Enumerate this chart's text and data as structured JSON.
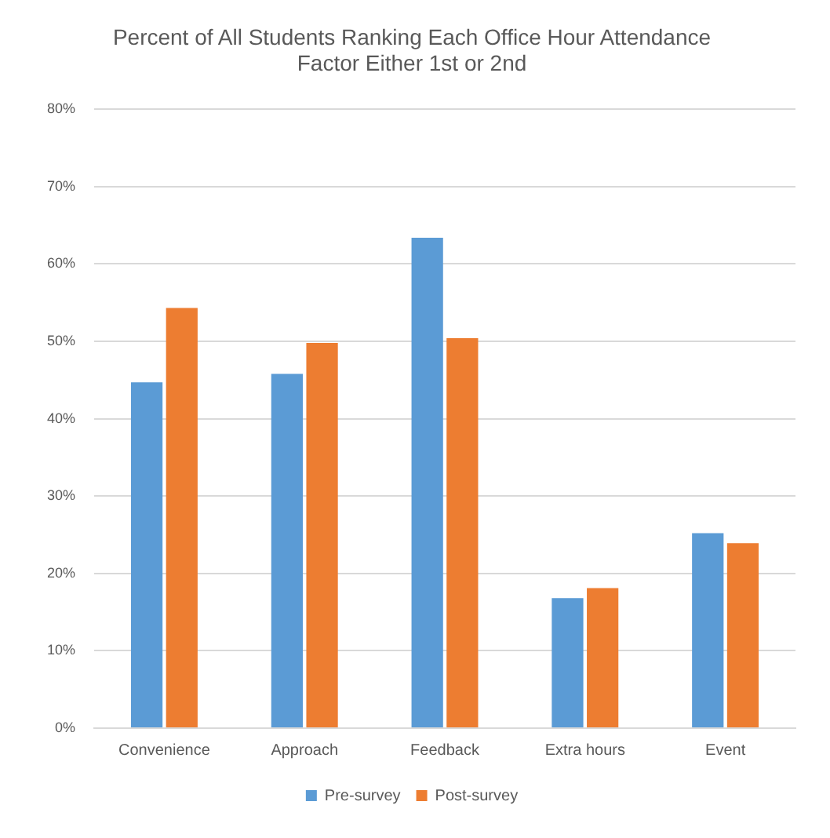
{
  "chart_data": {
    "type": "bar",
    "title": "Percent of All Students Ranking Each Office Hour Attendance Factor Either 1st or 2nd",
    "categories": [
      "Convenience",
      "Approach",
      "Feedback",
      "Extra hours",
      "Event"
    ],
    "series": [
      {
        "name": "Pre-survey",
        "color": "#5b9bd5",
        "values": [
          44.7,
          45.8,
          63.4,
          16.8,
          25.2
        ]
      },
      {
        "name": "Post-survey",
        "color": "#ed7d31",
        "values": [
          54.3,
          49.8,
          50.4,
          18.1,
          23.9
        ]
      }
    ],
    "ylim": [
      0,
      80
    ],
    "yticks": [
      {
        "value": 0,
        "label": "0%"
      },
      {
        "value": 10,
        "label": "10%"
      },
      {
        "value": 20,
        "label": "20%"
      },
      {
        "value": 30,
        "label": "30%"
      },
      {
        "value": 40,
        "label": "40%"
      },
      {
        "value": 50,
        "label": "50%"
      },
      {
        "value": 60,
        "label": "60%"
      },
      {
        "value": 70,
        "label": "70%"
      },
      {
        "value": 80,
        "label": "80%"
      }
    ],
    "grid": "y",
    "legend": "bottom"
  }
}
